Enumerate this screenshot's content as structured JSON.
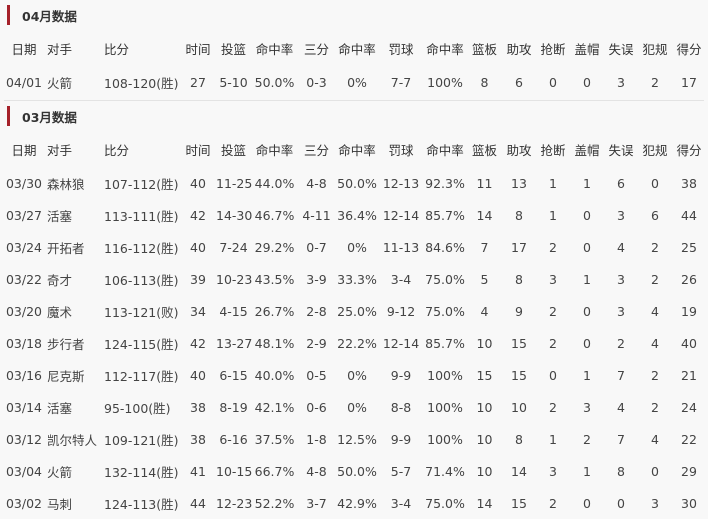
{
  "colors": {
    "accent": "#a5212a",
    "background": "#f8f8f8",
    "text": "#444444"
  },
  "headers": [
    "日期",
    "对手",
    "比分",
    "时间",
    "投篮",
    "命中率",
    "三分",
    "命中率",
    "罚球",
    "命中率",
    "篮板",
    "助攻",
    "抢断",
    "盖帽",
    "失误",
    "犯规",
    "得分"
  ],
  "sections": [
    {
      "title": "04月数据",
      "rows": [
        [
          "04/01",
          "火箭",
          "108-120(胜)",
          "27",
          "5-10",
          "50.0%",
          "0-3",
          "0%",
          "7-7",
          "100%",
          "8",
          "6",
          "0",
          "0",
          "3",
          "2",
          "17"
        ]
      ]
    },
    {
      "title": "03月数据",
      "rows": [
        [
          "03/30",
          "森林狼",
          "107-112(胜)",
          "40",
          "11-25",
          "44.0%",
          "4-8",
          "50.0%",
          "12-13",
          "92.3%",
          "11",
          "13",
          "1",
          "1",
          "6",
          "0",
          "38"
        ],
        [
          "03/27",
          "活塞",
          "113-111(胜)",
          "42",
          "14-30",
          "46.7%",
          "4-11",
          "36.4%",
          "12-14",
          "85.7%",
          "14",
          "8",
          "1",
          "0",
          "3",
          "6",
          "44"
        ],
        [
          "03/24",
          "开拓者",
          "116-112(胜)",
          "40",
          "7-24",
          "29.2%",
          "0-7",
          "0%",
          "11-13",
          "84.6%",
          "7",
          "17",
          "2",
          "0",
          "4",
          "2",
          "25"
        ],
        [
          "03/22",
          "奇才",
          "106-113(胜)",
          "39",
          "10-23",
          "43.5%",
          "3-9",
          "33.3%",
          "3-4",
          "75.0%",
          "5",
          "8",
          "3",
          "1",
          "3",
          "2",
          "26"
        ],
        [
          "03/20",
          "魔术",
          "113-121(败)",
          "34",
          "4-15",
          "26.7%",
          "2-8",
          "25.0%",
          "9-12",
          "75.0%",
          "4",
          "9",
          "2",
          "0",
          "3",
          "4",
          "19"
        ],
        [
          "03/18",
          "步行者",
          "124-115(胜)",
          "42",
          "13-27",
          "48.1%",
          "2-9",
          "22.2%",
          "12-14",
          "85.7%",
          "10",
          "15",
          "2",
          "0",
          "2",
          "4",
          "40"
        ],
        [
          "03/16",
          "尼克斯",
          "112-117(胜)",
          "40",
          "6-15",
          "40.0%",
          "0-5",
          "0%",
          "9-9",
          "100%",
          "15",
          "15",
          "0",
          "1",
          "7",
          "2",
          "21"
        ],
        [
          "03/14",
          "活塞",
          "95-100(胜)",
          "38",
          "8-19",
          "42.1%",
          "0-6",
          "0%",
          "8-8",
          "100%",
          "10",
          "10",
          "2",
          "3",
          "4",
          "2",
          "24"
        ],
        [
          "03/12",
          "凯尔特人",
          "109-121(胜)",
          "38",
          "6-16",
          "37.5%",
          "1-8",
          "12.5%",
          "9-9",
          "100%",
          "10",
          "8",
          "1",
          "2",
          "7",
          "4",
          "22"
        ],
        [
          "03/04",
          "火箭",
          "132-114(胜)",
          "41",
          "10-15",
          "66.7%",
          "4-8",
          "50.0%",
          "5-7",
          "71.4%",
          "10",
          "14",
          "3",
          "1",
          "8",
          "0",
          "29"
        ],
        [
          "03/02",
          "马刺",
          "124-113(胜)",
          "44",
          "12-23",
          "52.2%",
          "3-7",
          "42.9%",
          "3-4",
          "75.0%",
          "14",
          "15",
          "2",
          "0",
          "0",
          "3",
          "30"
        ]
      ]
    }
  ]
}
